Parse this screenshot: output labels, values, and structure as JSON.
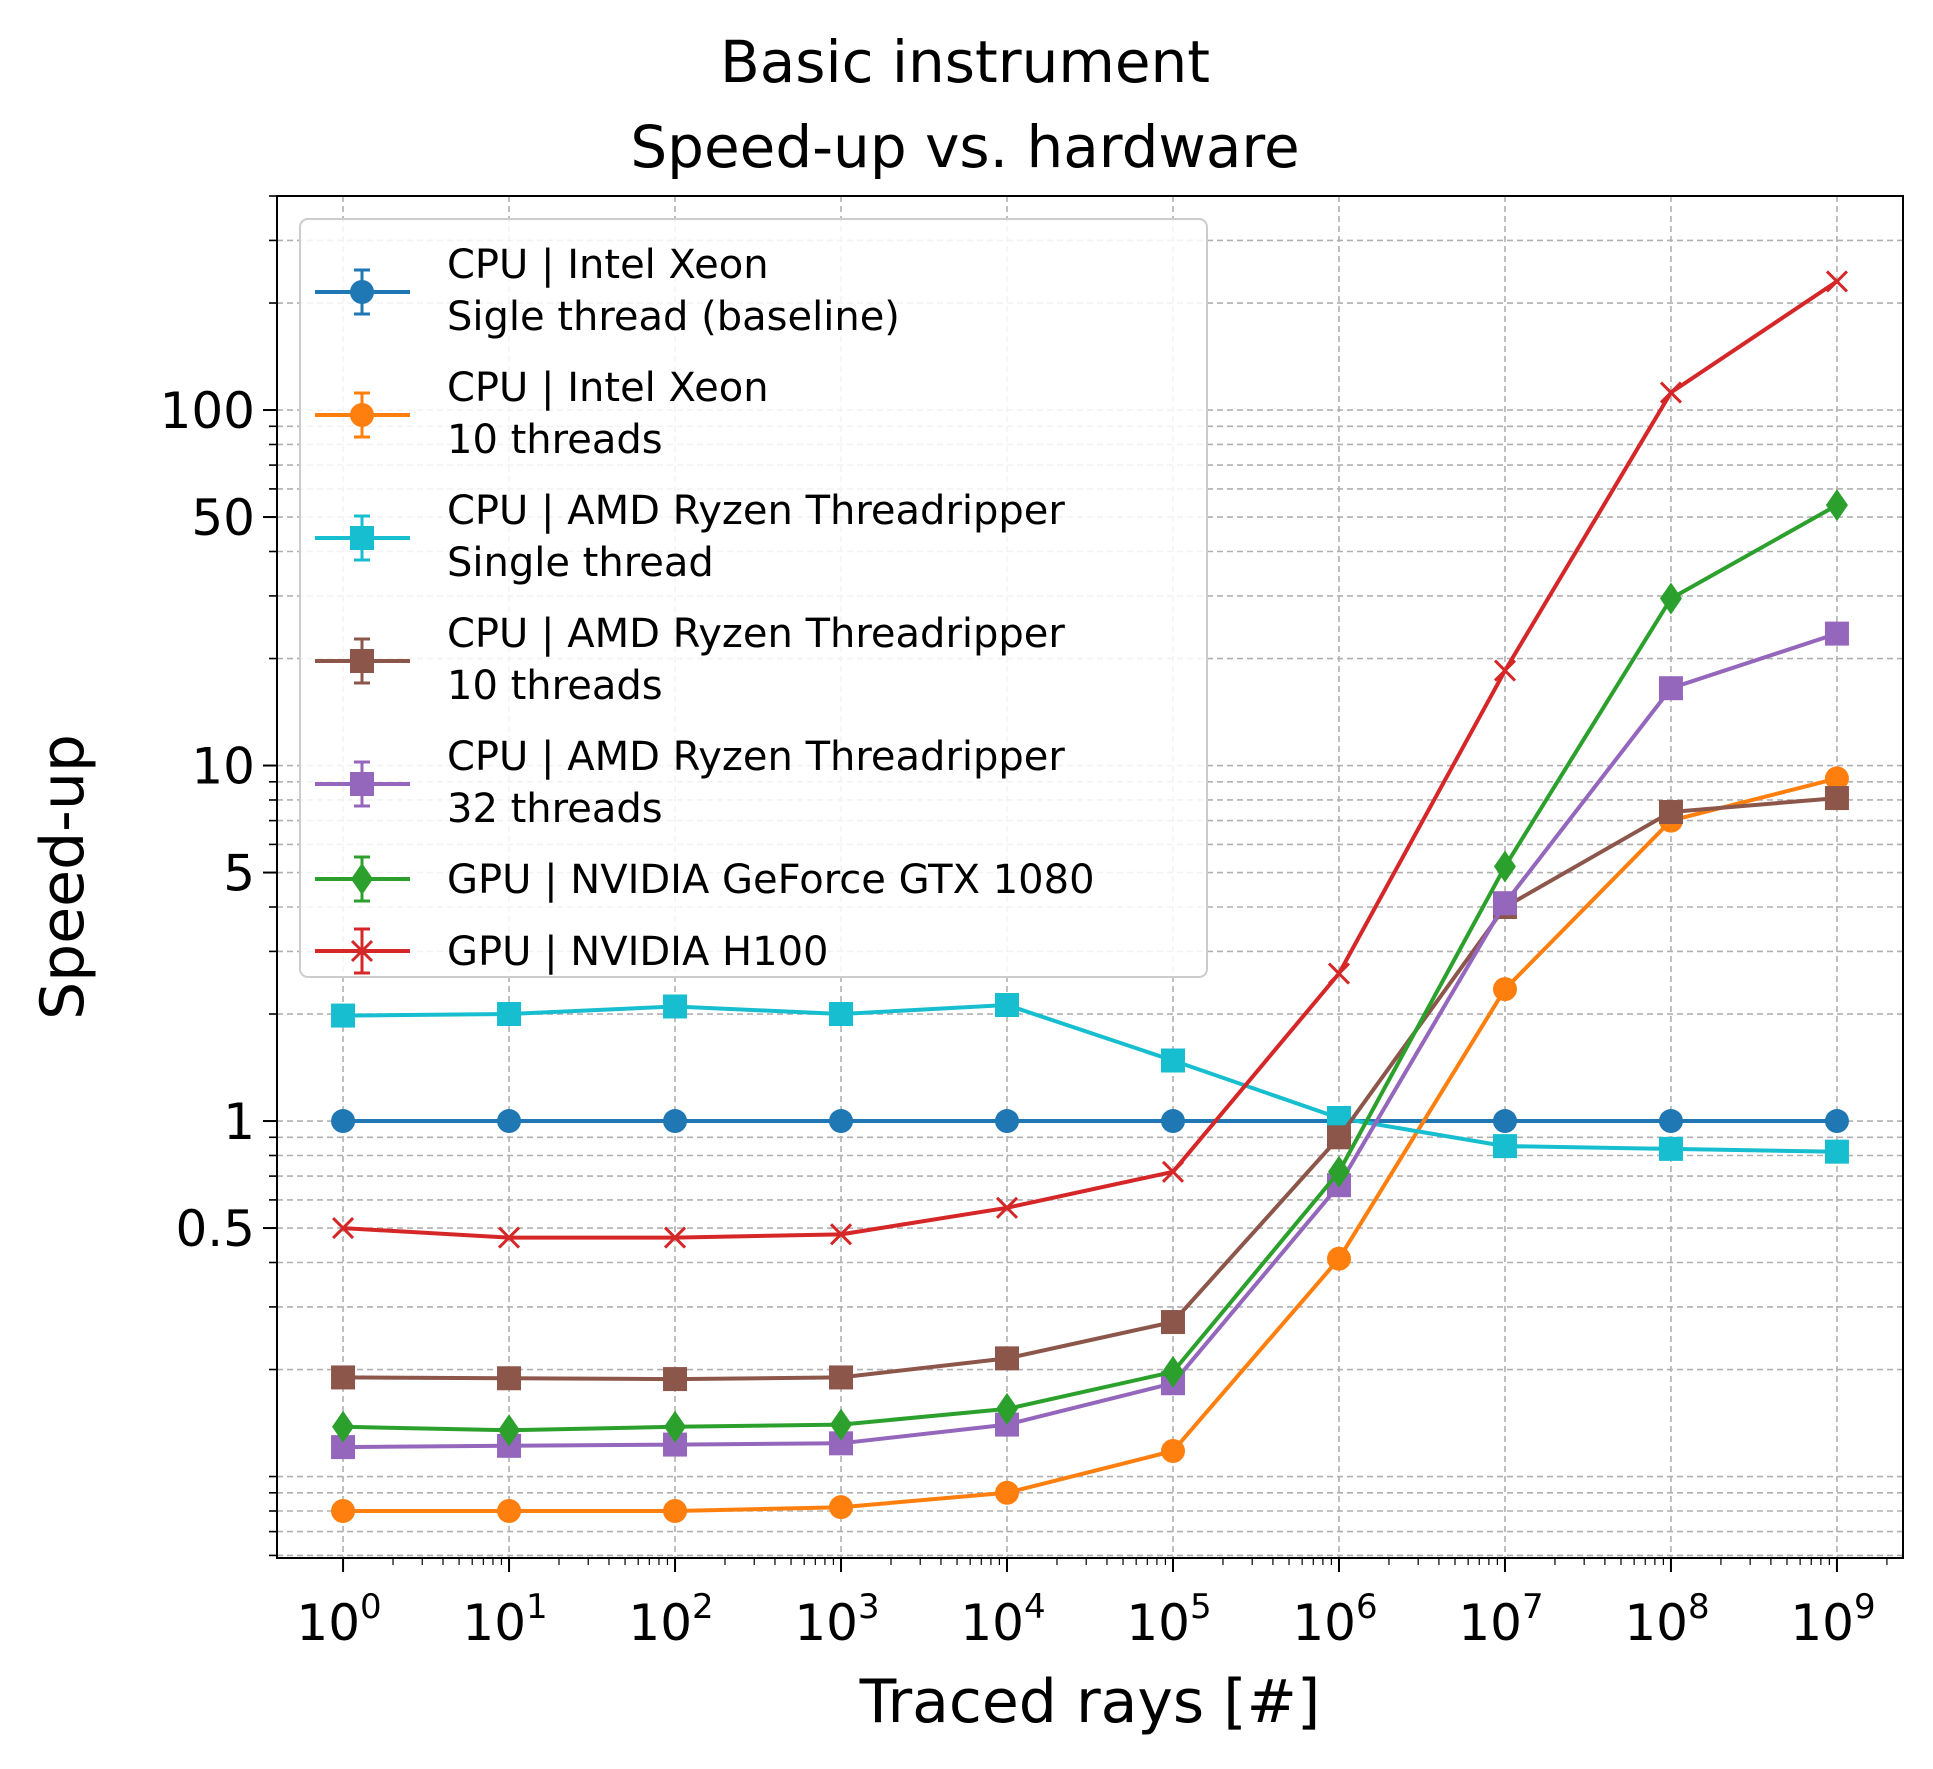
{
  "chart_data": {
    "type": "line",
    "title_lines": [
      "Basic instrument",
      "Speed-up vs. hardware"
    ],
    "xlabel": "Traced rays [#]",
    "ylabel": "Speed-up",
    "x_scale": "log",
    "y_scale": "log",
    "x": [
      1,
      10,
      100,
      1000,
      10000,
      100000,
      1000000,
      10000000,
      100000000,
      1000000000
    ],
    "x_tick_bases": [
      "10",
      "10",
      "10",
      "10",
      "10",
      "10",
      "10",
      "10",
      "10",
      "10"
    ],
    "x_tick_exps": [
      "0",
      "1",
      "2",
      "3",
      "4",
      "5",
      "6",
      "7",
      "8",
      "9"
    ],
    "y_ticks": [
      {
        "value": 0.5,
        "label": "0.5"
      },
      {
        "value": 1,
        "label": "1"
      },
      {
        "value": 5,
        "label": "5"
      },
      {
        "value": 10,
        "label": "10"
      },
      {
        "value": 50,
        "label": "50"
      },
      {
        "value": 100,
        "label": "100"
      }
    ],
    "xlim": [
      0.4,
      2500000000
    ],
    "ylim": [
      0.059,
      400
    ],
    "grid": true,
    "legend_position": "upper-left",
    "series": [
      {
        "name_lines": [
          "CPU | Intel Xeon",
          "Sigle thread (baseline)"
        ],
        "color": "#1f77b4",
        "marker": "circle",
        "values": [
          1,
          1,
          1,
          1,
          1,
          1,
          1,
          1,
          1,
          1
        ]
      },
      {
        "name_lines": [
          "CPU | Intel Xeon",
          "10 threads"
        ],
        "color": "#ff7f0e",
        "marker": "circle",
        "values": [
          0.08,
          0.08,
          0.08,
          0.082,
          0.09,
          0.118,
          0.41,
          2.35,
          7,
          9.2
        ]
      },
      {
        "name_lines": [
          "CPU | AMD Ryzen Threadripper",
          "Single thread"
        ],
        "color": "#17becf",
        "marker": "square",
        "values": [
          1.98,
          2.0,
          2.1,
          2.0,
          2.12,
          1.48,
          1.02,
          0.85,
          0.835,
          0.82
        ]
      },
      {
        "name_lines": [
          "CPU | AMD Ryzen Threadripper",
          "10 threads"
        ],
        "color": "#8c564b",
        "marker": "square",
        "values": [
          0.19,
          0.189,
          0.188,
          0.19,
          0.215,
          0.272,
          0.9,
          4.0,
          7.4,
          8.1
        ]
      },
      {
        "name_lines": [
          "CPU | AMD Ryzen Threadripper",
          "32 threads"
        ],
        "color": "#9467bd",
        "marker": "square",
        "values": [
          0.121,
          0.122,
          0.123,
          0.124,
          0.14,
          0.183,
          0.66,
          4.1,
          16.5,
          23.5
        ]
      },
      {
        "name_lines": [
          "GPU | NVIDIA GeForce GTX 1080"
        ],
        "color": "#2ca02c",
        "marker": "diamond",
        "values": [
          0.138,
          0.135,
          0.138,
          0.14,
          0.155,
          0.197,
          0.72,
          5.2,
          29.5,
          54
        ]
      },
      {
        "name_lines": [
          "GPU | NVIDIA H100"
        ],
        "color": "#d62728",
        "marker": "x",
        "values": [
          0.5,
          0.47,
          0.47,
          0.48,
          0.57,
          0.72,
          2.6,
          18.5,
          112,
          230
        ]
      }
    ]
  }
}
